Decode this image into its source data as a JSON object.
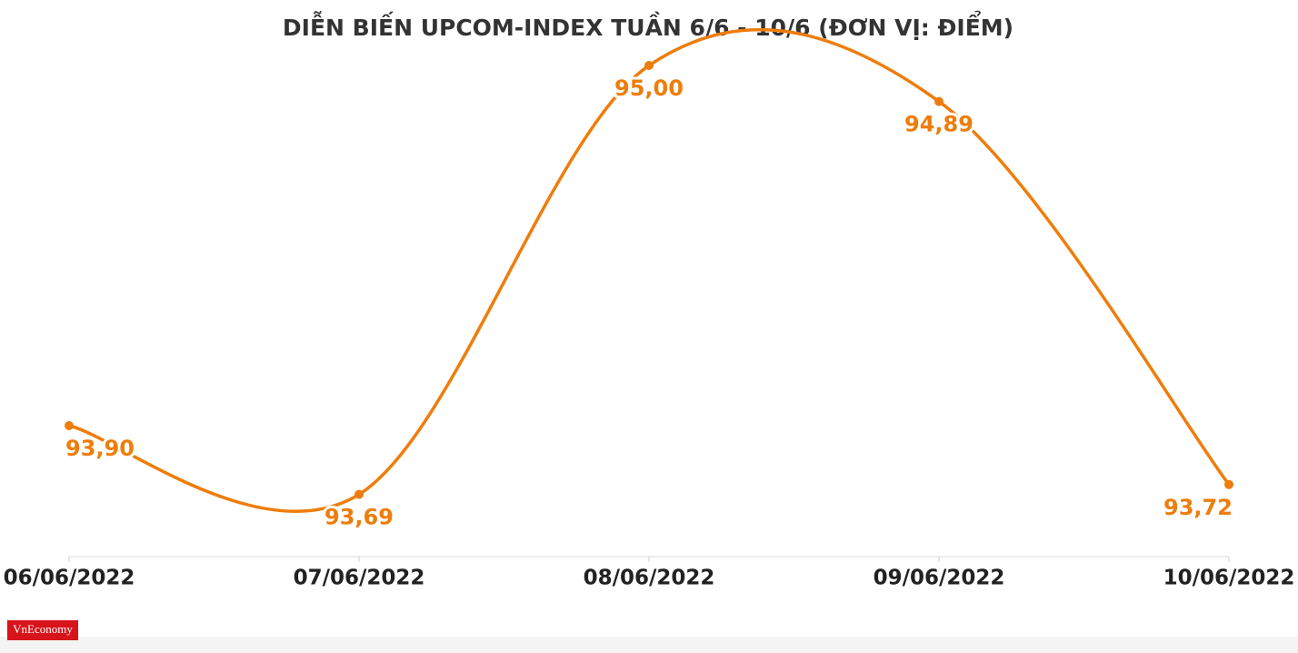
{
  "chart_data": {
    "type": "line",
    "title": "DIỄN BIẾN UPCOM-INDEX TUẦN 6/6 - 10/6 (ĐƠN VỊ: ĐIỂM)",
    "categories": [
      "06/06/2022",
      "07/06/2022",
      "08/06/2022",
      "09/06/2022",
      "10/06/2022"
    ],
    "values": [
      93.9,
      93.69,
      95.0,
      94.89,
      93.72
    ],
    "value_labels": [
      "93,90",
      "93,69",
      "95,00",
      "94,89",
      "93,72"
    ],
    "color": "#ee7d0c",
    "ylim": [
      93.5,
      95.1
    ],
    "grid": false
  },
  "logo": "VnEconomy"
}
